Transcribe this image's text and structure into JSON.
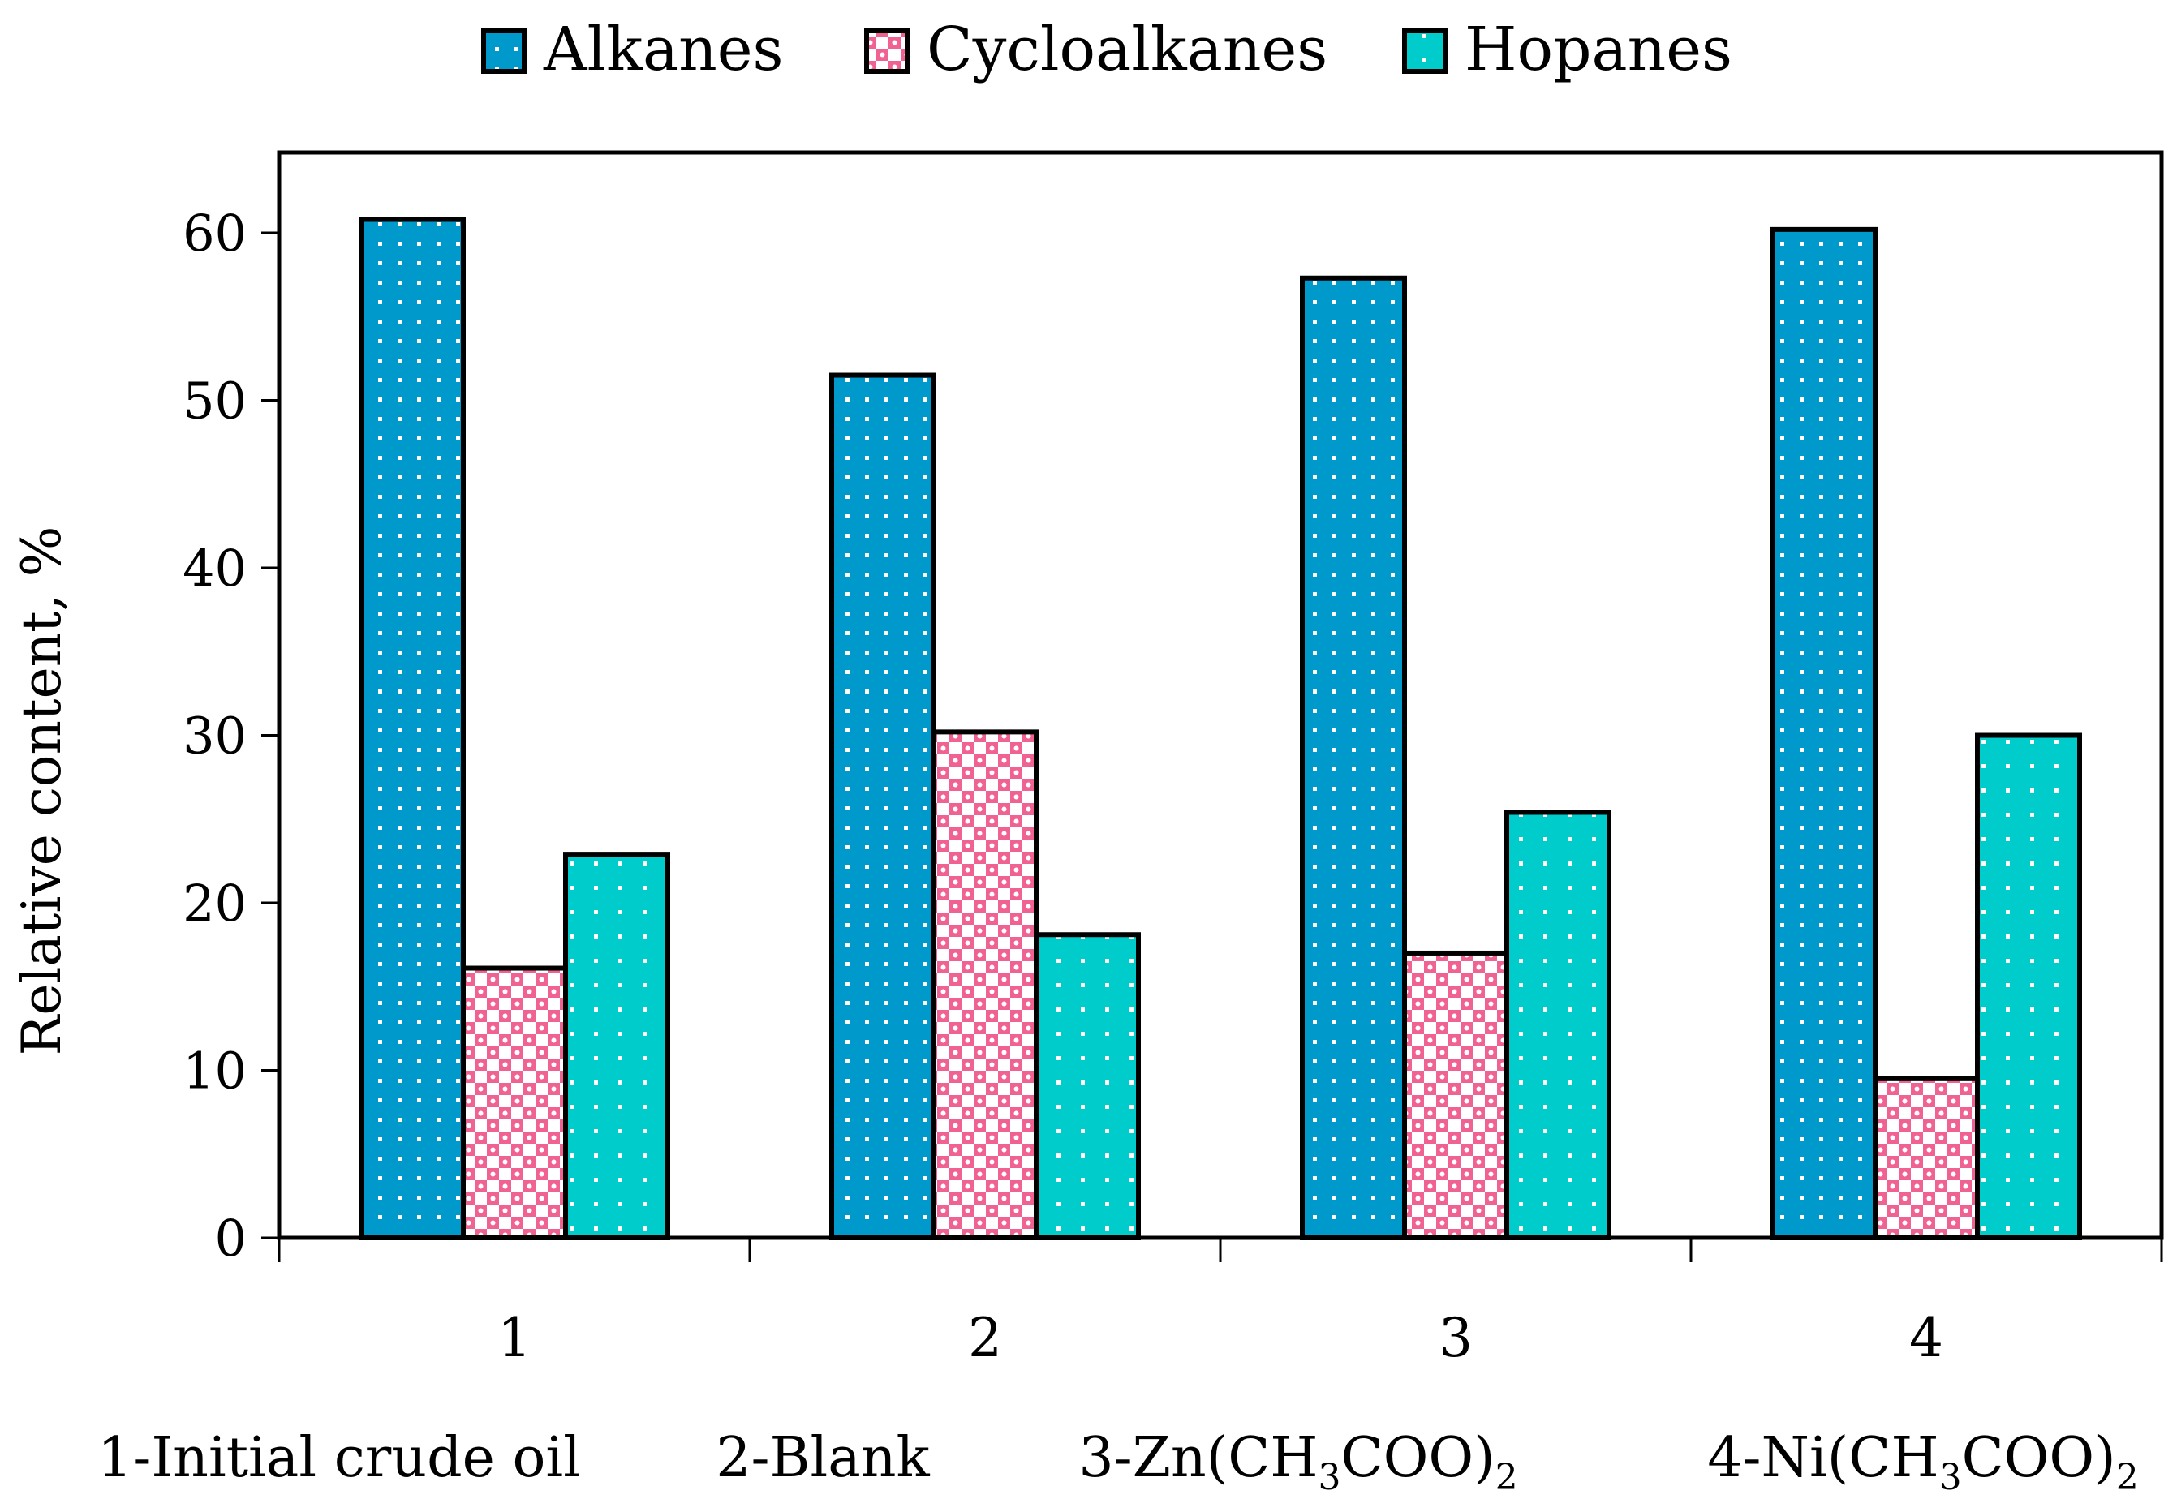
{
  "chart_data": {
    "type": "bar",
    "categories": [
      "1",
      "2",
      "3",
      "4"
    ],
    "series": [
      {
        "name": "Alkanes",
        "color": "#0099CC",
        "pattern": "dots",
        "values": [
          60.8,
          51.5,
          57.3,
          60.2
        ]
      },
      {
        "name": "Cycloalkanes",
        "color": "#F06292",
        "pattern": "checker",
        "values": [
          16.1,
          30.2,
          17.0,
          9.5
        ]
      },
      {
        "name": "Hopanes",
        "color": "#00CCCC",
        "pattern": "dots",
        "values": [
          22.9,
          18.1,
          25.4,
          30.0
        ]
      }
    ],
    "xlabel": "",
    "ylabel": "Relative content, %",
    "ylim": [
      0,
      65
    ],
    "yticks": [
      0,
      10,
      20,
      30,
      40,
      50,
      60
    ],
    "legend_position": "top",
    "grid": false,
    "notes": [
      {
        "prefix": "1-Initial crude oil",
        "sub1": "",
        "mid": "",
        "sub2": ""
      },
      {
        "prefix": "2-Blank",
        "sub1": "",
        "mid": "",
        "sub2": ""
      },
      {
        "prefix": "3-Zn(CH",
        "sub1": "3",
        "mid": "COO)",
        "sub2": "2"
      },
      {
        "prefix": "4-Ni(CH",
        "sub1": "3",
        "mid": "COO)",
        "sub2": "2"
      }
    ]
  }
}
